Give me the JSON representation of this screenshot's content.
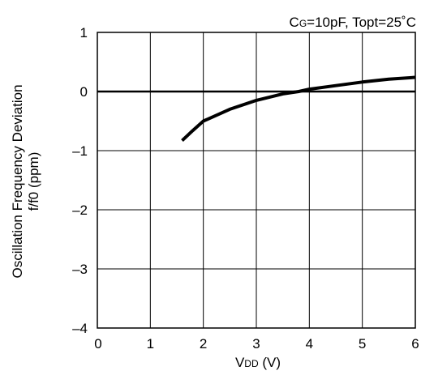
{
  "chart_data": {
    "type": "line",
    "annotation": {
      "c_main": "C",
      "c_sub": "G",
      "rest": "=10pF, Topt=25˚C"
    },
    "xlabel": {
      "main": "V",
      "sub": "DD",
      "unit": " (V)"
    },
    "ylabel": {
      "line1": "Oscillation Frequency Deviation",
      "line2": "f/f0 (ppm)"
    },
    "xlim": [
      0,
      6
    ],
    "ylim": [
      -4,
      1
    ],
    "x_ticks": [
      {
        "value": 0,
        "label": "0"
      },
      {
        "value": 1,
        "label": "1"
      },
      {
        "value": 2,
        "label": "2"
      },
      {
        "value": 3,
        "label": "3"
      },
      {
        "value": 4,
        "label": "4"
      },
      {
        "value": 5,
        "label": "5"
      },
      {
        "value": 6,
        "label": "6"
      }
    ],
    "y_ticks": [
      {
        "value": 1,
        "label": "1"
      },
      {
        "value": 0,
        "label": "0"
      },
      {
        "value": -1,
        "label": "–1"
      },
      {
        "value": -2,
        "label": "–2"
      },
      {
        "value": -3,
        "label": "–3"
      },
      {
        "value": -4,
        "label": "–4"
      }
    ],
    "grid": true,
    "series": [
      {
        "x": [
          1.6,
          1.8,
          2.0,
          2.5,
          3.0,
          3.5,
          3.8,
          4.0,
          4.5,
          5.0,
          5.5,
          6.0
        ],
        "y": [
          -0.83,
          -0.66,
          -0.5,
          -0.3,
          -0.15,
          -0.04,
          0.0,
          0.04,
          0.1,
          0.16,
          0.21,
          0.24
        ]
      }
    ]
  }
}
